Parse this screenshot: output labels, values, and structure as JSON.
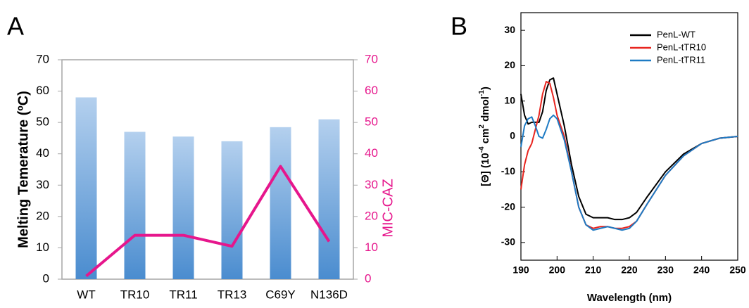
{
  "chart_data": [
    {
      "type": "bar",
      "panel_label": "A",
      "categories": [
        "WT",
        "TR10",
        "TR11",
        "TR13",
        "C69Y",
        "N136D"
      ],
      "series": [
        {
          "name": "Melting Temerature (ºC)",
          "color": "#5b9bd5",
          "values": [
            58,
            47,
            45.5,
            44,
            48.5,
            51
          ]
        },
        {
          "name": "MIC-CAZ",
          "color": "#e6168c",
          "axis": "y2",
          "values": [
            1,
            14,
            14,
            10.5,
            36,
            12
          ]
        }
      ],
      "ylabel": "Melting Temerature (ºC)",
      "y2label": "MIC-CAZ",
      "ylim": [
        0,
        70
      ],
      "yticks": [
        0,
        10,
        20,
        30,
        40,
        50,
        60,
        70
      ],
      "y2lim": [
        0,
        70
      ],
      "y2ticks": [
        0,
        10,
        20,
        30,
        40,
        50,
        60,
        70
      ]
    },
    {
      "type": "line",
      "panel_label": "B",
      "x": [
        190,
        191,
        192,
        193,
        194,
        195,
        196,
        197,
        198,
        199,
        200,
        202,
        204,
        206,
        208,
        210,
        212,
        214,
        216,
        218,
        220,
        222,
        225,
        230,
        235,
        240,
        245,
        250
      ],
      "series": [
        {
          "name": "PenL-WT",
          "color": "#000000",
          "values": [
            12,
            6,
            3.5,
            4,
            4,
            4,
            7,
            13,
            16,
            16.5,
            12,
            3,
            -8,
            -17,
            -22,
            -23,
            -23,
            -23,
            -23.5,
            -23.5,
            -23,
            -21.5,
            -17,
            -10,
            -5,
            -2,
            -0.5,
            0
          ]
        },
        {
          "name": "PenL-tTR10",
          "color": "#e8251f",
          "values": [
            -15,
            -8,
            -4,
            -2,
            2,
            6,
            12,
            15.5,
            15,
            11,
            6,
            0,
            -10,
            -20,
            -25,
            -26,
            -25.5,
            -25.5,
            -26,
            -26,
            -25.5,
            -24,
            -19,
            -11,
            -5.5,
            -2,
            -0.5,
            0
          ]
        },
        {
          "name": "PenL-tTR11",
          "color": "#1e7bc4",
          "values": [
            -3,
            3,
            5,
            5.5,
            3,
            0,
            -0.5,
            2,
            5,
            6,
            5,
            -1,
            -10,
            -20,
            -25,
            -26.5,
            -26,
            -25.5,
            -26,
            -26.5,
            -26,
            -24,
            -19,
            -11,
            -5.5,
            -2,
            -0.5,
            0
          ]
        }
      ],
      "xlabel": "Wavelength (nm)",
      "ylabel_parts": [
        "[Θ] (10",
        "-4",
        " cm",
        "2",
        " dmol",
        "-1",
        ")"
      ],
      "xlim": [
        190,
        250
      ],
      "xticks": [
        190,
        200,
        210,
        220,
        230,
        240,
        250
      ],
      "ylim": [
        -35,
        35
      ],
      "yticks": [
        -30,
        -20,
        -10,
        0,
        10,
        20,
        30
      ],
      "legend": "upper right"
    }
  ]
}
